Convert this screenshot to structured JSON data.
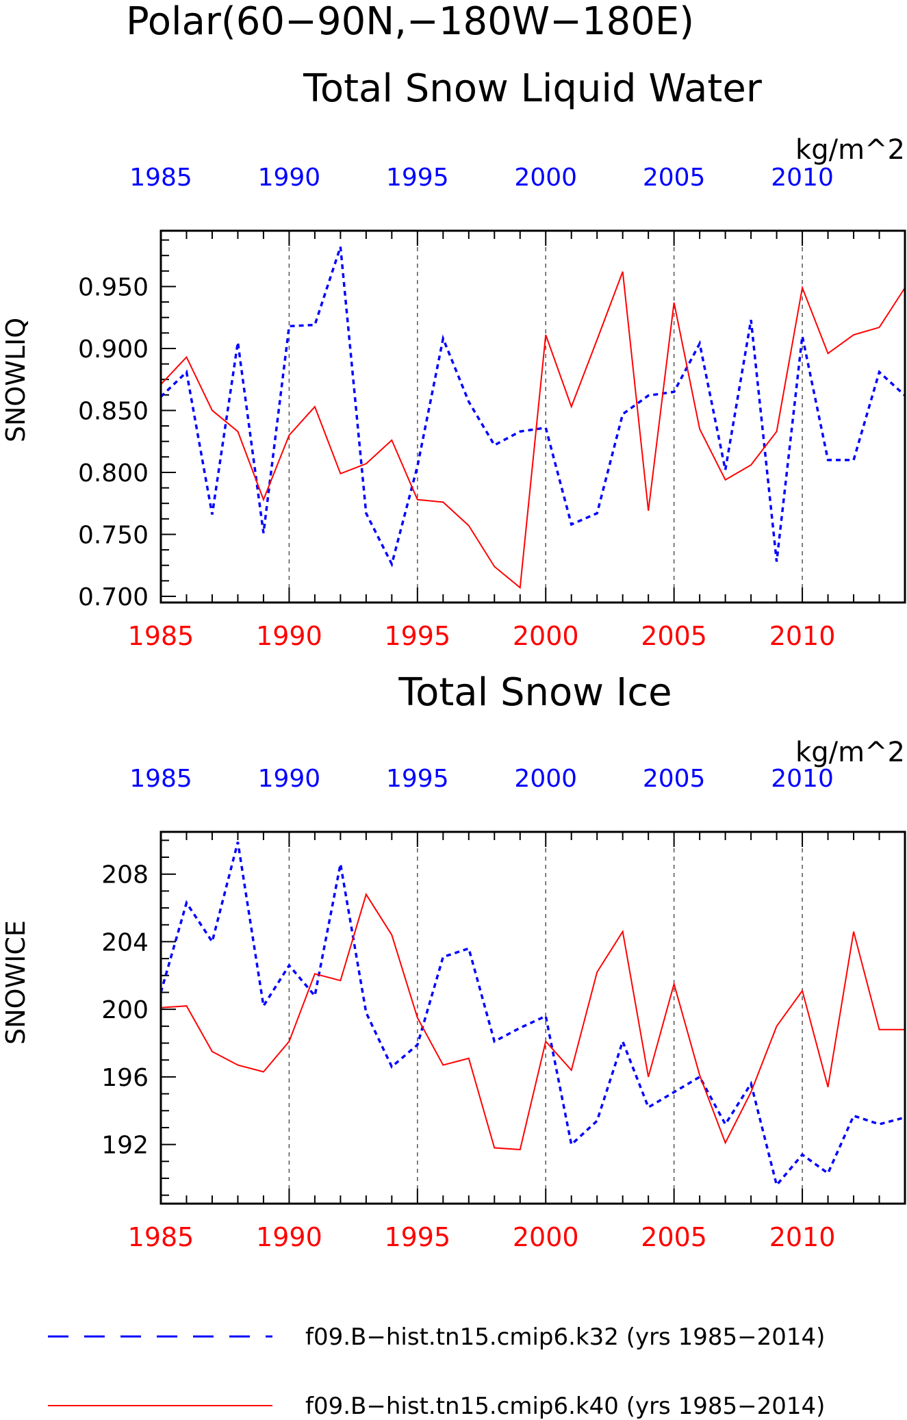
{
  "title": "Polar(60−90N,−180W−180E)",
  "colors": {
    "run_k32": "#0000ff",
    "run_k40": "#ff0000",
    "grid": "#555555"
  },
  "chart_data": [
    {
      "type": "line",
      "title": "Total Snow Liquid Water",
      "ylabel": "SNOWLIQ",
      "units": "kg/m^2",
      "xlim": [
        1985,
        2014
      ],
      "ylim": [
        0.695,
        0.995
      ],
      "yticks": [
        "0.700",
        "0.750",
        "0.800",
        "0.850",
        "0.900",
        "0.950"
      ],
      "xticks": [
        "1985",
        "1990",
        "1995",
        "2000",
        "2005",
        "2010"
      ],
      "grid": "vertical dashed at 1990, 1995, 2000, 2005, 2010",
      "x": [
        1985,
        1986,
        1987,
        1988,
        1989,
        1990,
        1991,
        1992,
        1993,
        1994,
        1995,
        1996,
        1997,
        1998,
        1999,
        2000,
        2001,
        2002,
        2003,
        2004,
        2005,
        2006,
        2007,
        2008,
        2009,
        2010,
        2011,
        2012,
        2013,
        2014
      ],
      "series": [
        {
          "name": "f09.B−hist.tn15.cmip6.k32 (yrs 1985−2014)",
          "style": "dashed",
          "values": [
            0.861,
            0.881,
            0.766,
            0.905,
            0.751,
            0.918,
            0.919,
            0.982,
            0.767,
            0.726,
            0.805,
            0.908,
            0.857,
            0.822,
            0.833,
            0.836,
            0.758,
            0.767,
            0.847,
            0.862,
            0.865,
            0.904,
            0.802,
            0.923,
            0.728,
            0.91,
            0.81,
            0.81,
            0.881,
            0.862
          ]
        },
        {
          "name": "f09.B−hist.tn15.cmip6.k40 (yrs 1985−2014)",
          "style": "solid",
          "values": [
            0.871,
            0.893,
            0.85,
            0.833,
            0.778,
            0.83,
            0.853,
            0.799,
            0.807,
            0.826,
            0.778,
            0.776,
            0.757,
            0.724,
            0.707,
            0.911,
            0.853,
            0.907,
            0.962,
            0.769,
            0.937,
            0.835,
            0.794,
            0.806,
            0.833,
            0.949,
            0.896,
            0.911,
            0.917,
            0.949
          ]
        }
      ]
    },
    {
      "type": "line",
      "title": "Total Snow Ice",
      "ylabel": "SNOWICE",
      "units": "kg/m^2",
      "xlim": [
        1985,
        2014
      ],
      "ylim": [
        188.5,
        210.5
      ],
      "yticks": [
        "192",
        "196",
        "200",
        "204",
        "208"
      ],
      "xticks": [
        "1985",
        "1990",
        "1995",
        "2000",
        "2005",
        "2010"
      ],
      "grid": "vertical dashed at 1990, 1995, 2000, 2005, 2010",
      "x": [
        1985,
        1986,
        1987,
        1988,
        1989,
        1990,
        1991,
        1992,
        1993,
        1994,
        1995,
        1996,
        1997,
        1998,
        1999,
        2000,
        2001,
        2002,
        2003,
        2004,
        2005,
        2006,
        2007,
        2008,
        2009,
        2010,
        2011,
        2012,
        2013,
        2014
      ],
      "series": [
        {
          "name": "f09.B−hist.tn15.cmip6.k32 (yrs 1985−2014)",
          "style": "dashed",
          "values": [
            201.0,
            206.3,
            204.0,
            209.9,
            200.2,
            202.6,
            200.8,
            208.6,
            199.8,
            196.6,
            197.9,
            203.1,
            203.6,
            198.1,
            198.9,
            199.6,
            192.0,
            193.4,
            198.1,
            194.2,
            195.1,
            196.0,
            193.2,
            195.6,
            189.6,
            191.4,
            190.3,
            193.7,
            193.2,
            193.6
          ]
        },
        {
          "name": "f09.B−hist.tn15.cmip6.k40 (yrs 1985−2014)",
          "style": "solid",
          "values": [
            200.1,
            200.2,
            197.5,
            196.7,
            196.3,
            198.1,
            202.1,
            201.7,
            206.8,
            204.4,
            199.5,
            196.7,
            197.1,
            191.8,
            191.7,
            198.1,
            196.4,
            202.2,
            204.6,
            196.0,
            201.5,
            196.1,
            192.1,
            195.1,
            199.0,
            201.1,
            195.4,
            204.6,
            198.8,
            198.8
          ]
        }
      ]
    }
  ],
  "legend": [
    {
      "label": "f09.B−hist.tn15.cmip6.k32 (yrs 1985−2014)",
      "style": "dashed",
      "color": "#0000ff"
    },
    {
      "label": "f09.B−hist.tn15.cmip6.k40 (yrs 1985−2014)",
      "style": "solid",
      "color": "#ff0000"
    }
  ]
}
